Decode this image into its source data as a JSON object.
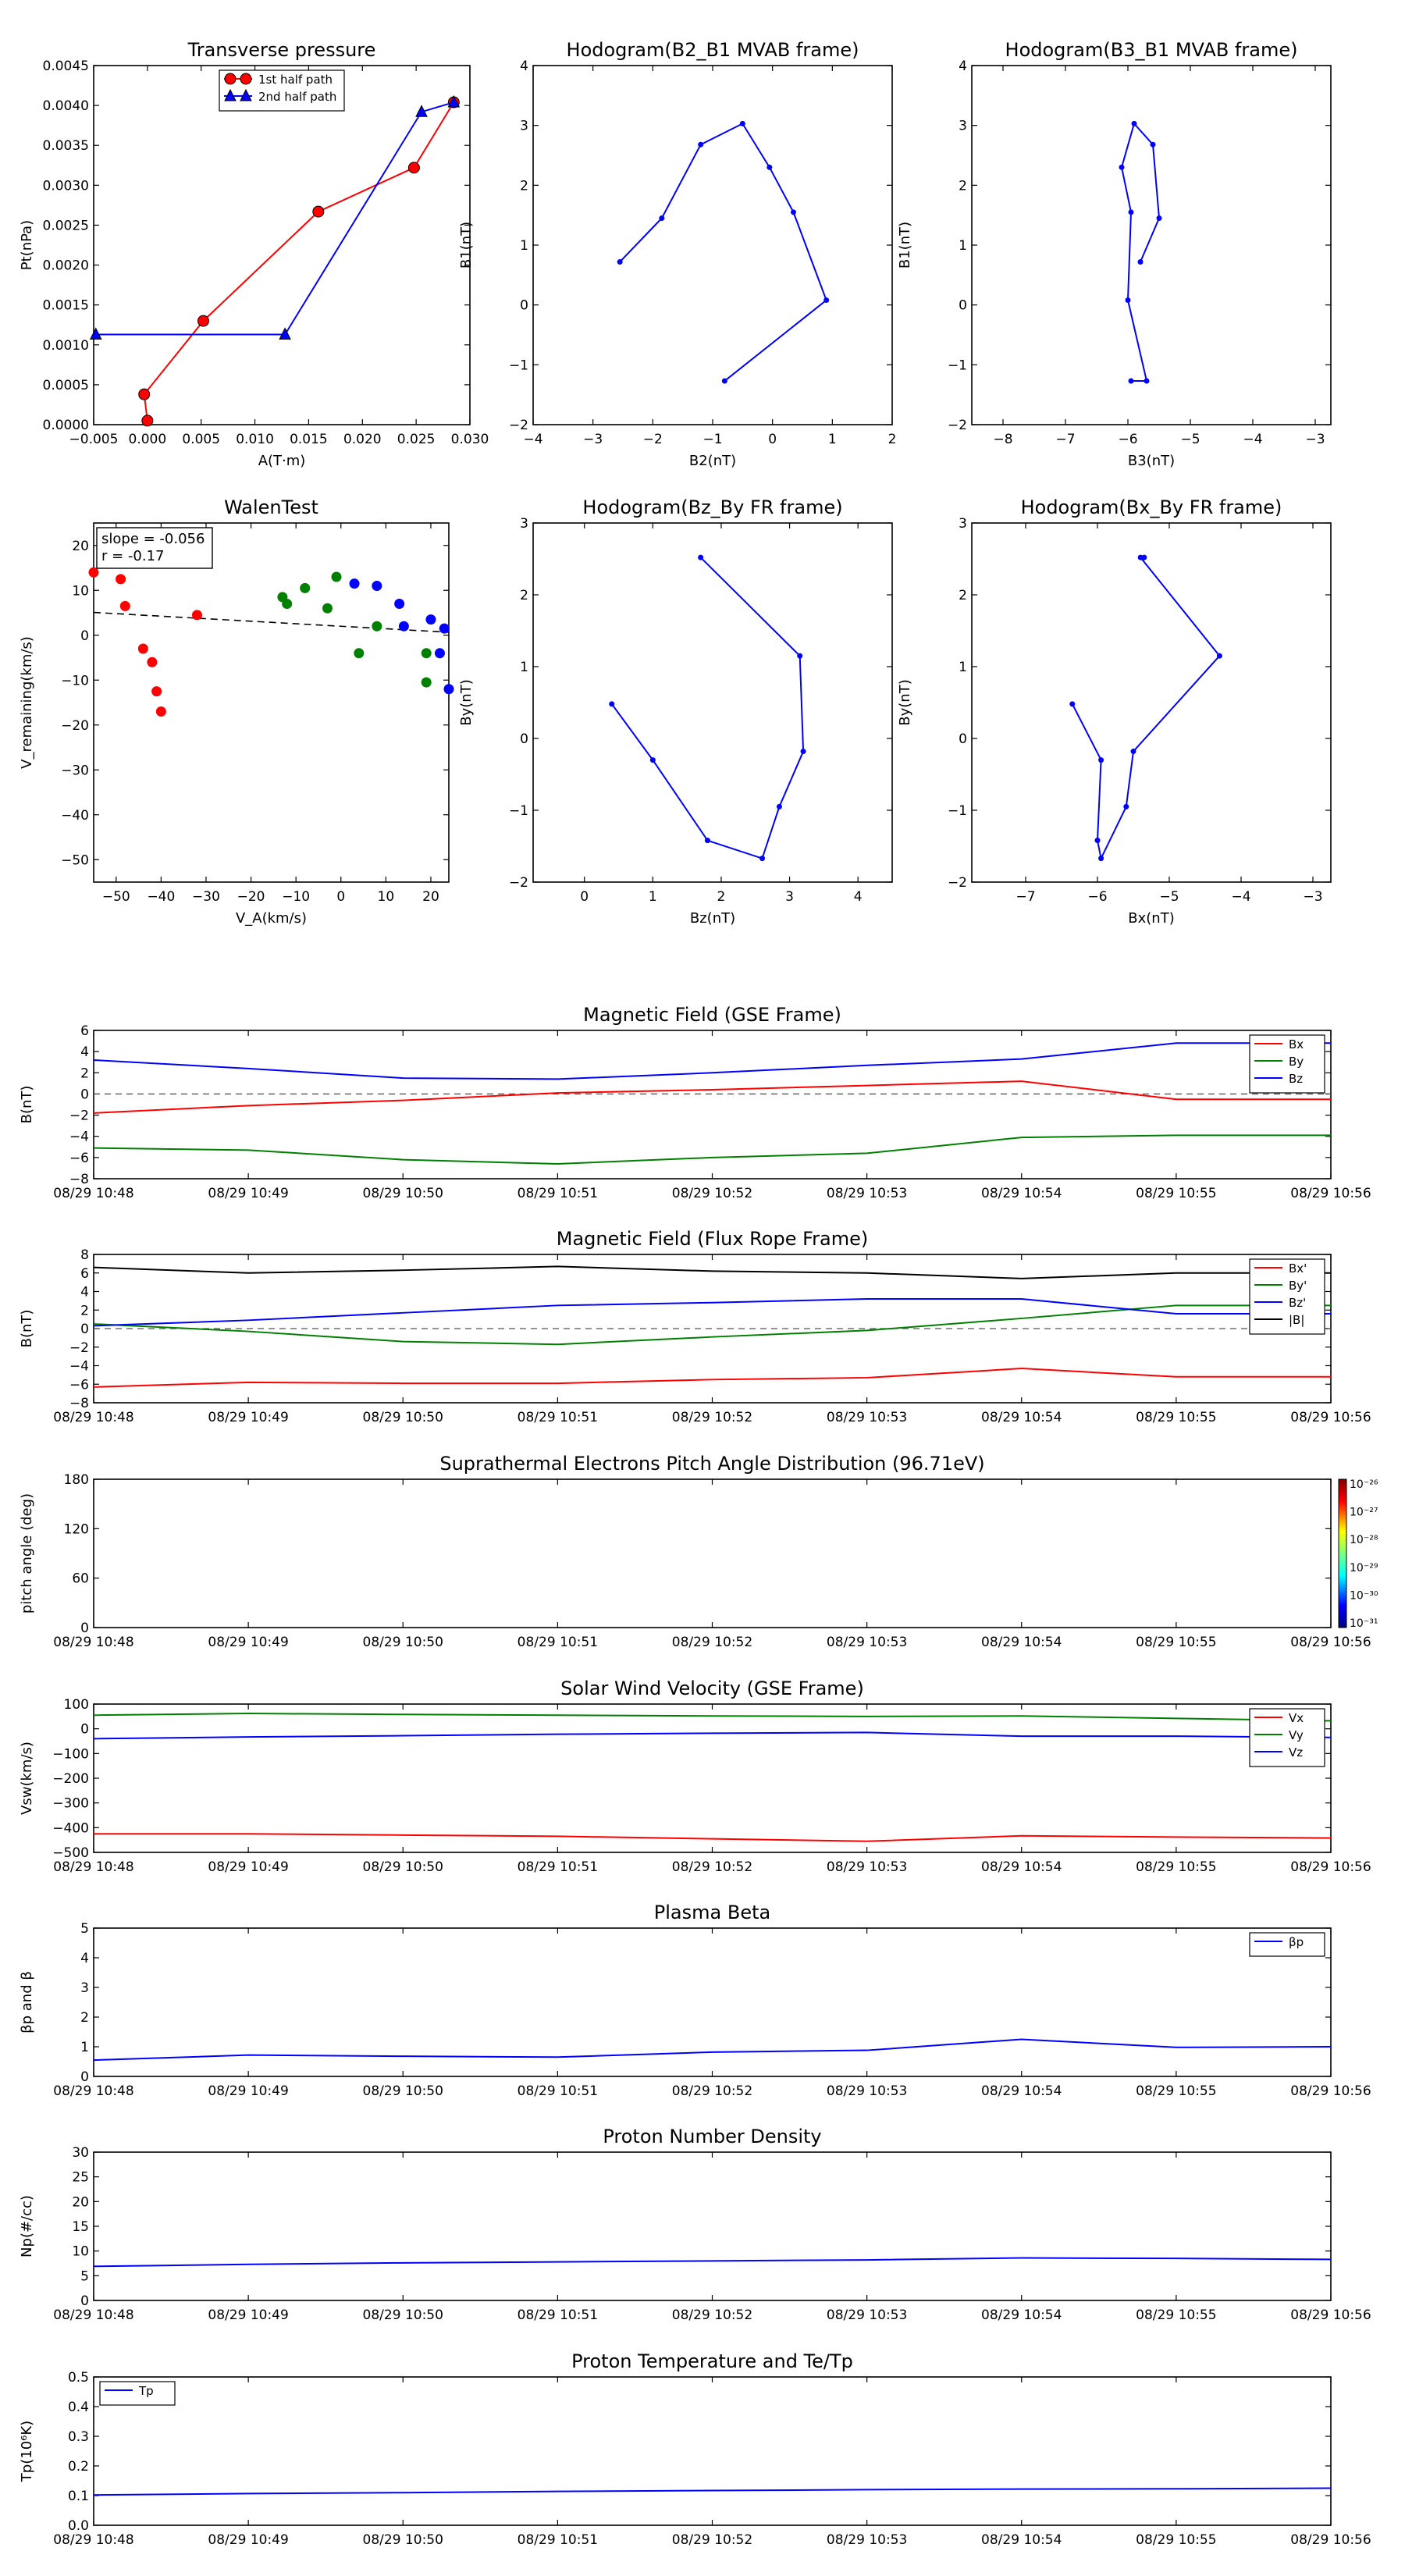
{
  "chart_data": [
    {
      "id": "tp",
      "type": "line",
      "title": "Transverse pressure",
      "xlabel": "A(T·m)",
      "ylabel": "Pt(nPa)",
      "xlim": [
        -0.005,
        0.03
      ],
      "ylim": [
        0,
        0.0045
      ],
      "xticks": [
        -0.005,
        0,
        0.005,
        0.01,
        0.015,
        0.02,
        0.025,
        0.03
      ],
      "xtick_labels": [
        "−0.005",
        "0.000",
        "0.005",
        "0.010",
        "0.015",
        "0.020",
        "0.025",
        "0.030"
      ],
      "yticks": [
        0,
        0.0005,
        0.001,
        0.0015,
        0.002,
        0.0025,
        0.003,
        0.0035,
        0.004,
        0.0045
      ],
      "ytick_labels": [
        "0.0000",
        "0.0005",
        "0.0010",
        "0.0015",
        "0.0020",
        "0.0025",
        "0.0030",
        "0.0035",
        "0.0040",
        "0.0045"
      ],
      "legend": "top-center",
      "series": [
        {
          "name": "1st half path",
          "color": "#ff0000",
          "marker": "circle",
          "x": [
            0.0,
            -0.0003,
            0.0052,
            0.0159,
            0.0248,
            0.0285
          ],
          "y": [
            5e-05,
            0.00038,
            0.0013,
            0.00267,
            0.00322,
            0.00404
          ]
        },
        {
          "name": "2nd half path",
          "color": "#0000ff",
          "marker": "triangle",
          "x": [
            0.0285,
            0.0255,
            0.0128,
            -0.0048
          ],
          "y": [
            0.00404,
            0.00392,
            0.00113,
            0.00113
          ]
        }
      ]
    },
    {
      "id": "h1",
      "type": "line",
      "title": "Hodogram(B2_B1 MVAB frame)",
      "xlabel": "B2(nT)",
      "ylabel": "B1(nT)",
      "xlim": [
        -4,
        2
      ],
      "ylim": [
        -2,
        4
      ],
      "xticks": [
        -4,
        -3,
        -2,
        -1,
        0,
        1,
        2
      ],
      "xtick_labels": [
        "−4",
        "−3",
        "−2",
        "−1",
        "0",
        "1",
        "2"
      ],
      "yticks": [
        -2,
        -1,
        0,
        1,
        2,
        3,
        4
      ],
      "ytick_labels": [
        "−2",
        "−1",
        "0",
        "1",
        "2",
        "3",
        "4"
      ],
      "series": [
        {
          "color": "#0000ff",
          "marker": "dot",
          "x": [
            -2.55,
            -1.85,
            -1.2,
            -0.5,
            -0.05,
            0.35,
            0.9,
            -0.8
          ],
          "y": [
            0.72,
            1.45,
            2.68,
            3.03,
            2.3,
            1.55,
            0.08,
            -1.27
          ]
        }
      ]
    },
    {
      "id": "h2",
      "type": "line",
      "title": "Hodogram(B3_B1 MVAB frame)",
      "xlabel": "B3(nT)",
      "ylabel": "B1(nT)",
      "xlim": [
        -8.5,
        -2.75
      ],
      "ylim": [
        -2,
        4
      ],
      "xticks": [
        -8,
        -7,
        -6,
        -5,
        -4,
        -3
      ],
      "xtick_labels": [
        "−8",
        "−7",
        "−6",
        "−5",
        "−4",
        "−3"
      ],
      "yticks": [
        -2,
        -1,
        0,
        1,
        2,
        3,
        4
      ],
      "ytick_labels": [
        "−2",
        "−1",
        "0",
        "1",
        "2",
        "3",
        "4"
      ],
      "series": [
        {
          "color": "#0000ff",
          "marker": "dot",
          "x": [
            -5.8,
            -5.5,
            -5.6,
            -5.9,
            -6.1,
            -5.95,
            -6.0,
            -5.7,
            -5.95
          ],
          "y": [
            0.72,
            1.45,
            2.68,
            3.03,
            2.3,
            1.55,
            0.08,
            -1.27,
            -1.27
          ]
        }
      ]
    },
    {
      "id": "walen",
      "type": "scatter",
      "title": "WalenTest",
      "xlabel": "V_A(km/s)",
      "ylabel": "V_remaining(km/s)",
      "xlim": [
        -55,
        24
      ],
      "ylim": [
        -55,
        25
      ],
      "xticks": [
        -50,
        -40,
        -30,
        -20,
        -10,
        0,
        10,
        20
      ],
      "xtick_labels": [
        "−50",
        "−40",
        "−30",
        "−20",
        "−10",
        "0",
        "10",
        "20"
      ],
      "yticks": [
        -50,
        -40,
        -30,
        -20,
        -10,
        0,
        10,
        20
      ],
      "ytick_labels": [
        "−50",
        "−40",
        "−30",
        "−20",
        "−10",
        "0",
        "10",
        "20"
      ],
      "annotation": [
        "slope = -0.056",
        "r = -0.17"
      ],
      "fit_line": {
        "slope": -0.056,
        "intercept": 2.0
      },
      "series": [
        {
          "color": "#ff0000",
          "x": [
            -55,
            -49,
            -48,
            -44,
            -42,
            -41,
            -40,
            -32
          ],
          "y": [
            14,
            12.5,
            6.5,
            -3,
            -6,
            -12.5,
            -17,
            4.5
          ]
        },
        {
          "color": "#008000",
          "x": [
            -13,
            -12,
            -8,
            -3,
            -1,
            4,
            8,
            19,
            19
          ],
          "y": [
            8.5,
            7,
            10.5,
            6,
            13,
            -4,
            2,
            -4,
            -10.5
          ]
        },
        {
          "color": "#0000ff",
          "x": [
            3,
            8,
            13,
            14,
            20,
            22,
            23,
            24
          ],
          "y": [
            11.5,
            11,
            7,
            2,
            3.5,
            -4,
            1.5,
            -12
          ]
        }
      ]
    },
    {
      "id": "h3",
      "type": "line",
      "title": "Hodogram(Bz_By FR frame)",
      "xlabel": "Bz(nT)",
      "ylabel": "By(nT)",
      "xlim": [
        -0.75,
        4.5
      ],
      "ylim": [
        -2,
        3
      ],
      "xticks": [
        0,
        1,
        2,
        3,
        4
      ],
      "xtick_labels": [
        "0",
        "1",
        "2",
        "3",
        "4"
      ],
      "yticks": [
        -2,
        -1,
        0,
        1,
        2,
        3
      ],
      "ytick_labels": [
        "−2",
        "−1",
        "0",
        "1",
        "2",
        "3"
      ],
      "series": [
        {
          "color": "#0000ff",
          "marker": "dot",
          "x": [
            1.7,
            3.15,
            3.2,
            2.85,
            2.6,
            1.8,
            1.0,
            0.4
          ],
          "y": [
            2.52,
            1.15,
            -0.18,
            -0.95,
            -1.67,
            -1.42,
            -0.3,
            0.48
          ]
        }
      ]
    },
    {
      "id": "h4",
      "type": "line",
      "title": "Hodogram(Bx_By FR frame)",
      "xlabel": "Bx(nT)",
      "ylabel": "By(nT)",
      "xlim": [
        -7.75,
        -2.75
      ],
      "ylim": [
        -2,
        3
      ],
      "xticks": [
        -7,
        -6,
        -5,
        -4,
        -3
      ],
      "xtick_labels": [
        "−7",
        "−6",
        "−5",
        "−4",
        "−3"
      ],
      "yticks": [
        -2,
        -1,
        0,
        1,
        2,
        3
      ],
      "ytick_labels": [
        "−2",
        "−1",
        "0",
        "1",
        "2",
        "3"
      ],
      "series": [
        {
          "color": "#0000ff",
          "marker": "dot",
          "x": [
            -5.35,
            -5.4,
            -4.3,
            -5.5,
            -5.6,
            -5.95,
            -6.0,
            -5.95,
            -6.35
          ],
          "y": [
            2.52,
            2.52,
            1.15,
            -0.18,
            -0.95,
            -1.67,
            -1.42,
            -0.3,
            0.48
          ]
        }
      ]
    },
    {
      "id": "mag_gse",
      "type": "line",
      "title": "Magnetic Field (GSE Frame)",
      "ylabel": "B(nT)",
      "ylim": [
        -8,
        6
      ],
      "yticks": [
        -8,
        -6,
        -4,
        -2,
        0,
        2,
        4,
        6
      ],
      "ytick_labels": [
        "−8",
        "−6",
        "−4",
        "−2",
        "0",
        "2",
        "4",
        "6"
      ],
      "time_ticks": [
        "08/29 10:48",
        "08/29 10:49",
        "08/29 10:50",
        "08/29 10:51",
        "08/29 10:52",
        "08/29 10:53",
        "08/29 10:54",
        "08/29 10:55",
        "08/29 10:56"
      ],
      "dashed_zero": true,
      "legend": "upper-right",
      "x": [
        0,
        1,
        2,
        3,
        4,
        5,
        6,
        7,
        8
      ],
      "series": [
        {
          "name": "Bx",
          "color": "#ff0000",
          "values": [
            -1.8,
            -1.1,
            -0.6,
            0.1,
            0.4,
            0.8,
            1.2,
            -0.5,
            -0.5
          ]
        },
        {
          "name": "By",
          "color": "#008000",
          "values": [
            -5.1,
            -5.3,
            -6.2,
            -6.6,
            -6.0,
            -5.6,
            -4.1,
            -3.9,
            -3.9
          ]
        },
        {
          "name": "Bz",
          "color": "#0000ff",
          "values": [
            3.2,
            2.4,
            1.5,
            1.4,
            2.0,
            2.7,
            3.3,
            4.8,
            4.8
          ]
        }
      ]
    },
    {
      "id": "mag_fr",
      "type": "line",
      "title": "Magnetic Field (Flux Rope Frame)",
      "ylabel": "B(nT)",
      "ylim": [
        -8,
        8
      ],
      "yticks": [
        -8,
        -6,
        -4,
        -2,
        0,
        2,
        4,
        6,
        8
      ],
      "ytick_labels": [
        "−8",
        "−6",
        "−4",
        "−2",
        "0",
        "2",
        "4",
        "6",
        "8"
      ],
      "time_ticks": [
        "08/29 10:48",
        "08/29 10:49",
        "08/29 10:50",
        "08/29 10:51",
        "08/29 10:52",
        "08/29 10:53",
        "08/29 10:54",
        "08/29 10:55",
        "08/29 10:56"
      ],
      "dashed_zero": true,
      "legend": "upper-right",
      "x": [
        0,
        1,
        2,
        3,
        4,
        5,
        6,
        7,
        8
      ],
      "series": [
        {
          "name": "Bx'",
          "color": "#ff0000",
          "values": [
            -6.3,
            -5.8,
            -5.9,
            -5.9,
            -5.5,
            -5.3,
            -4.3,
            -5.2,
            -5.2
          ]
        },
        {
          "name": "By'",
          "color": "#008000",
          "values": [
            0.5,
            -0.3,
            -1.4,
            -1.7,
            -0.9,
            -0.2,
            1.1,
            2.5,
            2.5
          ]
        },
        {
          "name": "Bz'",
          "color": "#0000ff",
          "values": [
            0.3,
            0.9,
            1.7,
            2.5,
            2.8,
            3.2,
            3.2,
            1.6,
            1.6
          ]
        },
        {
          "name": "|B|",
          "color": "#000000",
          "values": [
            6.6,
            6.0,
            6.3,
            6.7,
            6.2,
            6.0,
            5.4,
            6.0,
            6.0
          ]
        }
      ]
    },
    {
      "id": "pad",
      "type": "heatmap",
      "title": "Suprathermal Electrons Pitch Angle Distribution (96.71eV)",
      "ylabel": "pitch angle (deg)",
      "ylim": [
        0,
        180
      ],
      "yticks": [
        0,
        60,
        120,
        180
      ],
      "ytick_labels": [
        "0",
        "60",
        "120",
        "180"
      ],
      "time_ticks": [
        "08/29 10:48",
        "08/29 10:49",
        "08/29 10:50",
        "08/29 10:51",
        "08/29 10:52",
        "08/29 10:53",
        "08/29 10:54",
        "08/29 10:55",
        "08/29 10:56"
      ],
      "colorbar": {
        "ticks": [
          "10⁻²⁶",
          "10⁻²⁷",
          "10⁻²⁸",
          "10⁻²⁹",
          "10⁻³⁰",
          "10⁻³¹"
        ]
      }
    },
    {
      "id": "vsw",
      "type": "line",
      "title": "Solar Wind Velocity (GSE Frame)",
      "ylabel": "Vsw(km/s)",
      "ylim": [
        -500,
        100
      ],
      "yticks": [
        -500,
        -400,
        -300,
        -200,
        -100,
        0,
        100
      ],
      "ytick_labels": [
        "−500",
        "−400",
        "−300",
        "−200",
        "−100",
        "0",
        "100"
      ],
      "time_ticks": [
        "08/29 10:48",
        "08/29 10:49",
        "08/29 10:50",
        "08/29 10:51",
        "08/29 10:52",
        "08/29 10:53",
        "08/29 10:54",
        "08/29 10:55",
        "08/29 10:56"
      ],
      "legend": "upper-right",
      "x": [
        0,
        1,
        2,
        3,
        4,
        5,
        6,
        7,
        8
      ],
      "series": [
        {
          "name": "Vx",
          "color": "#ff0000",
          "values": [
            -425,
            -425,
            -430,
            -435,
            -445,
            -455,
            -433,
            -438,
            -442
          ]
        },
        {
          "name": "Vy",
          "color": "#008000",
          "values": [
            55,
            62,
            58,
            55,
            52,
            50,
            52,
            42,
            32
          ]
        },
        {
          "name": "Vz",
          "color": "#0000ff",
          "values": [
            -40,
            -33,
            -28,
            -22,
            -18,
            -15,
            -30,
            -30,
            -35
          ]
        }
      ]
    },
    {
      "id": "beta",
      "type": "line",
      "title": "Plasma Beta",
      "ylabel": "βp and β",
      "ylim": [
        0,
        5
      ],
      "yticks": [
        0,
        1,
        2,
        3,
        4,
        5
      ],
      "ytick_labels": [
        "0",
        "1",
        "2",
        "3",
        "4",
        "5"
      ],
      "time_ticks": [
        "08/29 10:48",
        "08/29 10:49",
        "08/29 10:50",
        "08/29 10:51",
        "08/29 10:52",
        "08/29 10:53",
        "08/29 10:54",
        "08/29 10:55",
        "08/29 10:56"
      ],
      "legend": "upper-right",
      "x": [
        0,
        1,
        2,
        3,
        4,
        5,
        6,
        7,
        8
      ],
      "series": [
        {
          "name": "βp",
          "color": "#0000ff",
          "values": [
            0.55,
            0.72,
            0.68,
            0.65,
            0.82,
            0.88,
            1.25,
            0.98,
            1.0
          ]
        }
      ]
    },
    {
      "id": "np",
      "type": "line",
      "title": "Proton Number Density",
      "ylabel": "Np(#/cc)",
      "ylim": [
        0,
        30
      ],
      "yticks": [
        0,
        5,
        10,
        15,
        20,
        25,
        30
      ],
      "ytick_labels": [
        "0",
        "5",
        "10",
        "15",
        "20",
        "25",
        "30"
      ],
      "time_ticks": [
        "08/29 10:48",
        "08/29 10:49",
        "08/29 10:50",
        "08/29 10:51",
        "08/29 10:52",
        "08/29 10:53",
        "08/29 10:54",
        "08/29 10:55",
        "08/29 10:56"
      ],
      "x": [
        0,
        1,
        2,
        3,
        4,
        5,
        6,
        7,
        8
      ],
      "series": [
        {
          "color": "#0000ff",
          "values": [
            6.9,
            7.3,
            7.6,
            7.8,
            8.0,
            8.2,
            8.6,
            8.5,
            8.3
          ]
        }
      ]
    },
    {
      "id": "tp_temp",
      "type": "line",
      "title": "Proton Temperature and Te/Tp",
      "ylabel": "Tp(10⁶K)",
      "ylim": [
        0,
        0.5
      ],
      "yticks": [
        0,
        0.1,
        0.2,
        0.3,
        0.4,
        0.5
      ],
      "ytick_labels": [
        "0.0",
        "0.1",
        "0.2",
        "0.3",
        "0.4",
        "0.5"
      ],
      "time_ticks": [
        "08/29 10:48",
        "08/29 10:49",
        "08/29 10:50",
        "08/29 10:51",
        "08/29 10:52",
        "08/29 10:53",
        "08/29 10:54",
        "08/29 10:55",
        "08/29 10:56"
      ],
      "legend": "upper-left",
      "x": [
        0,
        1,
        2,
        3,
        4,
        5,
        6,
        7,
        8
      ],
      "series": [
        {
          "name": "Tp",
          "color": "#0000ff",
          "values": [
            0.102,
            0.107,
            0.11,
            0.114,
            0.117,
            0.12,
            0.122,
            0.123,
            0.125
          ]
        }
      ]
    }
  ]
}
